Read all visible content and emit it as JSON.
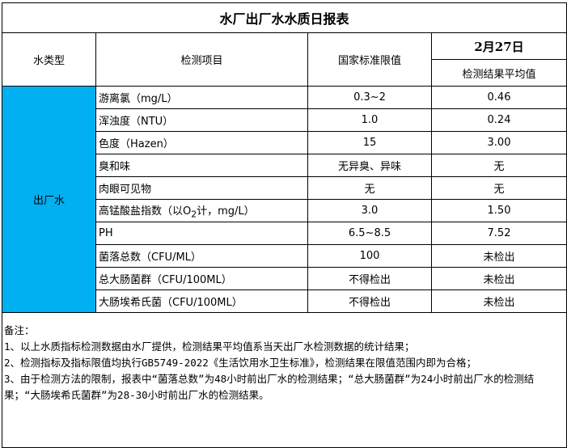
{
  "title": "水厂出厂水水质日报表",
  "headers": {
    "water_type": "水类型",
    "item": "检测项目",
    "standard": "国家标准限值",
    "date": "2月27日",
    "result": "检测结果平均值"
  },
  "water_type_value": "出厂水",
  "type_cell_color": "#00b0f0",
  "rows": [
    {
      "item": "游离氯（mg/L）",
      "standard": "0.3~2",
      "result": "0.46"
    },
    {
      "item": "浑浊度（NTU）",
      "standard": "1.0",
      "result": "0.24"
    },
    {
      "item": "色度（Hazen）",
      "standard": "15",
      "result": "3.00"
    },
    {
      "item": "臭和味",
      "standard": "无异臭、异味",
      "result": "无"
    },
    {
      "item": "肉眼可见物",
      "standard": "无",
      "result": "无"
    },
    {
      "item_prefix": "高锰酸盐指数（以O",
      "item_sub": "2",
      "item_suffix": "计，mg/L）",
      "standard": "3.0",
      "result": "1.50"
    },
    {
      "item": "PH",
      "standard": "6.5~8.5",
      "result": "7.52"
    },
    {
      "item": "菌落总数（CFU/ML）",
      "standard": "100",
      "result": "未检出"
    },
    {
      "item": "总大肠菌群（CFU/100ML）",
      "standard": "不得检出",
      "result": "未检出"
    },
    {
      "item": "大肠埃希氏菌（CFU/100ML）",
      "standard": "不得检出",
      "result": "未检出"
    }
  ],
  "notes": {
    "heading": "备注：",
    "lines": [
      "1、以上水质指标检测数据由水厂提供，检测结果平均值系当天出厂水检测数据的统计结果；",
      "2、检测指标及指标限值均执行GB5749-2022《生活饮用水卫生标准》，检测结果在限值范围内即为合格；",
      "3、由于检测方法的限制，报表中“菌落总数”为48小时前出厂水的检测结果；“总大肠菌群”为24小时前出厂水的检测结果；“大肠埃希氏菌群”为28-30小时前出厂水的检测结果。"
    ]
  }
}
